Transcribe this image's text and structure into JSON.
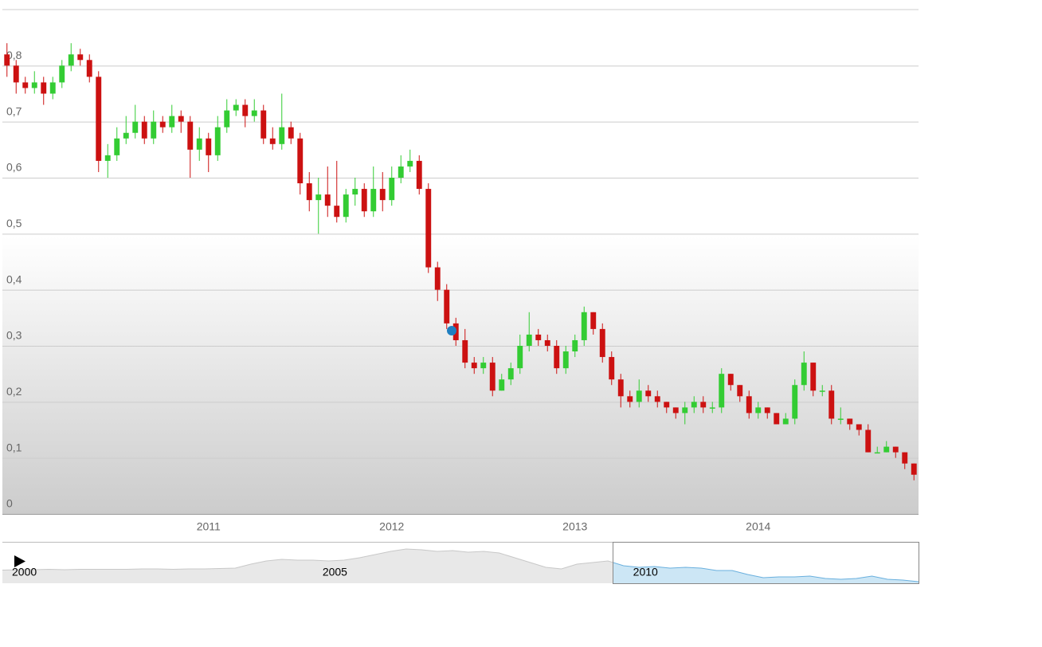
{
  "chart_data": [
    {
      "type": "candlestick",
      "categories": [
        null,
        null,
        null,
        null,
        null,
        null,
        null,
        null,
        null,
        null,
        null,
        null,
        null,
        null,
        null,
        null,
        null,
        null,
        null,
        null,
        null,
        null,
        "2011",
        null,
        null,
        null,
        null,
        null,
        null,
        null,
        null,
        null,
        null,
        null,
        null,
        null,
        null,
        null,
        null,
        null,
        null,
        null,
        "2012",
        null,
        null,
        null,
        null,
        null,
        null,
        null,
        null,
        null,
        null,
        null,
        null,
        null,
        null,
        null,
        null,
        null,
        null,
        null,
        "2013",
        null,
        null,
        null,
        null,
        null,
        null,
        null,
        null,
        null,
        null,
        null,
        null,
        null,
        null,
        null,
        null,
        null,
        null,
        null,
        "2014",
        null,
        null,
        null,
        null,
        null,
        null,
        null,
        null,
        null,
        null,
        null,
        null,
        null,
        null,
        null,
        null,
        null
      ],
      "open": [
        0.82,
        0.8,
        0.77,
        0.76,
        0.77,
        0.75,
        0.77,
        0.8,
        0.82,
        0.81,
        0.78,
        0.63,
        0.64,
        0.67,
        0.68,
        0.7,
        0.67,
        0.7,
        0.69,
        0.71,
        0.7,
        0.65,
        0.67,
        0.64,
        0.69,
        0.72,
        0.73,
        0.71,
        0.72,
        0.67,
        0.66,
        0.69,
        0.67,
        0.59,
        0.56,
        0.57,
        0.55,
        0.53,
        0.57,
        0.58,
        0.54,
        0.58,
        0.56,
        0.6,
        0.62,
        0.63,
        0.58,
        0.44,
        0.4,
        0.34,
        0.31,
        0.27,
        0.26,
        0.27,
        0.22,
        0.24,
        0.26,
        0.3,
        0.32,
        0.31,
        0.3,
        0.26,
        0.29,
        0.31,
        0.36,
        0.33,
        0.28,
        0.24,
        0.21,
        0.2,
        0.22,
        0.21,
        0.2,
        0.19,
        0.18,
        0.19,
        0.2,
        0.19,
        0.19,
        0.25,
        0.23,
        0.21,
        0.18,
        0.19,
        0.18,
        0.16,
        0.17,
        0.23,
        0.27,
        0.22,
        0.22,
        0.17,
        0.17,
        0.16,
        0.15,
        0.11,
        0.11,
        0.12,
        0.11,
        0.09
      ],
      "high": [
        0.84,
        0.81,
        0.78,
        0.79,
        0.78,
        0.78,
        0.81,
        0.84,
        0.83,
        0.82,
        0.79,
        0.66,
        0.69,
        0.71,
        0.73,
        0.71,
        0.72,
        0.71,
        0.73,
        0.72,
        0.71,
        0.69,
        0.68,
        0.71,
        0.74,
        0.74,
        0.74,
        0.74,
        0.73,
        0.69,
        0.75,
        0.7,
        0.68,
        0.61,
        0.6,
        0.62,
        0.63,
        0.58,
        0.6,
        0.59,
        0.62,
        0.61,
        0.62,
        0.64,
        0.65,
        0.64,
        0.59,
        0.45,
        0.41,
        0.35,
        0.33,
        0.28,
        0.28,
        0.28,
        0.25,
        0.27,
        0.32,
        0.36,
        0.33,
        0.32,
        0.31,
        0.3,
        0.32,
        0.37,
        0.36,
        0.34,
        0.29,
        0.25,
        0.22,
        0.24,
        0.23,
        0.22,
        0.2,
        0.19,
        0.2,
        0.21,
        0.21,
        0.2,
        0.26,
        0.25,
        0.23,
        0.22,
        0.2,
        0.19,
        0.18,
        0.18,
        0.24,
        0.29,
        0.27,
        0.23,
        0.23,
        0.19,
        0.17,
        0.16,
        0.16,
        0.12,
        0.13,
        0.12,
        0.11,
        0.09
      ],
      "low": [
        0.78,
        0.75,
        0.75,
        0.75,
        0.73,
        0.74,
        0.76,
        0.79,
        0.8,
        0.77,
        0.61,
        0.6,
        0.63,
        0.66,
        0.67,
        0.66,
        0.66,
        0.68,
        0.68,
        0.68,
        0.6,
        0.63,
        0.61,
        0.63,
        0.68,
        0.71,
        0.69,
        0.7,
        0.66,
        0.65,
        0.65,
        0.66,
        0.57,
        0.54,
        0.5,
        0.53,
        0.52,
        0.52,
        0.55,
        0.53,
        0.53,
        0.54,
        0.55,
        0.59,
        0.61,
        0.57,
        0.43,
        0.38,
        0.33,
        0.3,
        0.26,
        0.25,
        0.25,
        0.21,
        0.22,
        0.23,
        0.25,
        0.29,
        0.3,
        0.29,
        0.25,
        0.25,
        0.28,
        0.3,
        0.32,
        0.27,
        0.23,
        0.19,
        0.19,
        0.19,
        0.2,
        0.19,
        0.18,
        0.17,
        0.16,
        0.18,
        0.18,
        0.18,
        0.18,
        0.22,
        0.2,
        0.17,
        0.17,
        0.17,
        0.16,
        0.16,
        0.16,
        0.22,
        0.21,
        0.21,
        0.16,
        0.16,
        0.15,
        0.14,
        0.11,
        0.11,
        0.11,
        0.1,
        0.08,
        0.06
      ],
      "close": [
        0.8,
        0.77,
        0.76,
        0.77,
        0.75,
        0.77,
        0.8,
        0.82,
        0.81,
        0.78,
        0.63,
        0.64,
        0.67,
        0.68,
        0.7,
        0.67,
        0.7,
        0.69,
        0.71,
        0.7,
        0.65,
        0.67,
        0.64,
        0.69,
        0.72,
        0.73,
        0.71,
        0.72,
        0.67,
        0.66,
        0.69,
        0.67,
        0.59,
        0.56,
        0.57,
        0.55,
        0.53,
        0.57,
        0.58,
        0.54,
        0.58,
        0.56,
        0.6,
        0.62,
        0.63,
        0.58,
        0.44,
        0.4,
        0.34,
        0.31,
        0.27,
        0.26,
        0.27,
        0.22,
        0.24,
        0.26,
        0.3,
        0.32,
        0.31,
        0.3,
        0.26,
        0.29,
        0.31,
        0.36,
        0.33,
        0.28,
        0.24,
        0.21,
        0.2,
        0.22,
        0.21,
        0.2,
        0.19,
        0.18,
        0.19,
        0.2,
        0.19,
        0.19,
        0.25,
        0.23,
        0.21,
        0.18,
        0.19,
        0.18,
        0.16,
        0.17,
        0.23,
        0.27,
        0.22,
        0.22,
        0.17,
        0.17,
        0.16,
        0.15,
        0.11,
        0.11,
        0.12,
        0.11,
        0.09,
        0.07
      ],
      "up_color": "#33cc33",
      "down_color": "#cc1111",
      "ylim": [
        0,
        0.9
      ],
      "yticks": [
        0,
        {
          "value": 0.1,
          "label": "0,1"
        },
        {
          "value": 0.2,
          "label": "0,2"
        },
        {
          "value": 0.3,
          "label": "0,3"
        },
        {
          "value": 0.4,
          "label": "0,4"
        },
        {
          "value": 0.5,
          "label": "0,5"
        },
        {
          "value": 0.6,
          "label": "0,6"
        },
        {
          "value": 0.7,
          "label": "0,7"
        },
        {
          "value": 0.8,
          "label": "0,8"
        }
      ],
      "grid": true
    },
    {
      "type": "area",
      "categories": [
        "2000",
        null,
        null,
        null,
        null,
        null,
        null,
        null,
        null,
        null,
        null,
        null,
        null,
        null,
        null,
        null,
        null,
        null,
        null,
        null,
        "2005",
        null,
        null,
        null,
        null,
        null,
        null,
        null,
        null,
        null,
        null,
        null,
        null,
        null,
        null,
        null,
        null,
        null,
        null,
        null,
        "2010",
        null,
        null,
        null,
        null,
        null,
        null,
        null,
        null,
        null,
        null,
        null,
        null,
        null,
        null,
        null,
        null,
        null,
        null,
        null
      ],
      "values": [
        0.62,
        0.64,
        0.64,
        0.66,
        0.64,
        0.66,
        0.66,
        0.66,
        0.66,
        0.68,
        0.68,
        0.66,
        0.68,
        0.68,
        0.7,
        0.72,
        0.92,
        1.08,
        1.16,
        1.12,
        1.12,
        1.08,
        1.12,
        1.24,
        1.4,
        1.56,
        1.68,
        1.64,
        1.56,
        1.6,
        1.52,
        1.56,
        1.48,
        1.24,
        1.0,
        0.76,
        0.68,
        0.92,
        1.0,
        1.08,
        0.84,
        0.76,
        0.8,
        0.72,
        0.76,
        0.72,
        0.6,
        0.6,
        0.4,
        0.24,
        0.28,
        0.28,
        0.32,
        0.2,
        0.16,
        0.2,
        0.32,
        0.16,
        0.12,
        0.04
      ],
      "color": "#e8e8e8",
      "selected_color": "#cce6f5"
    }
  ]
}
